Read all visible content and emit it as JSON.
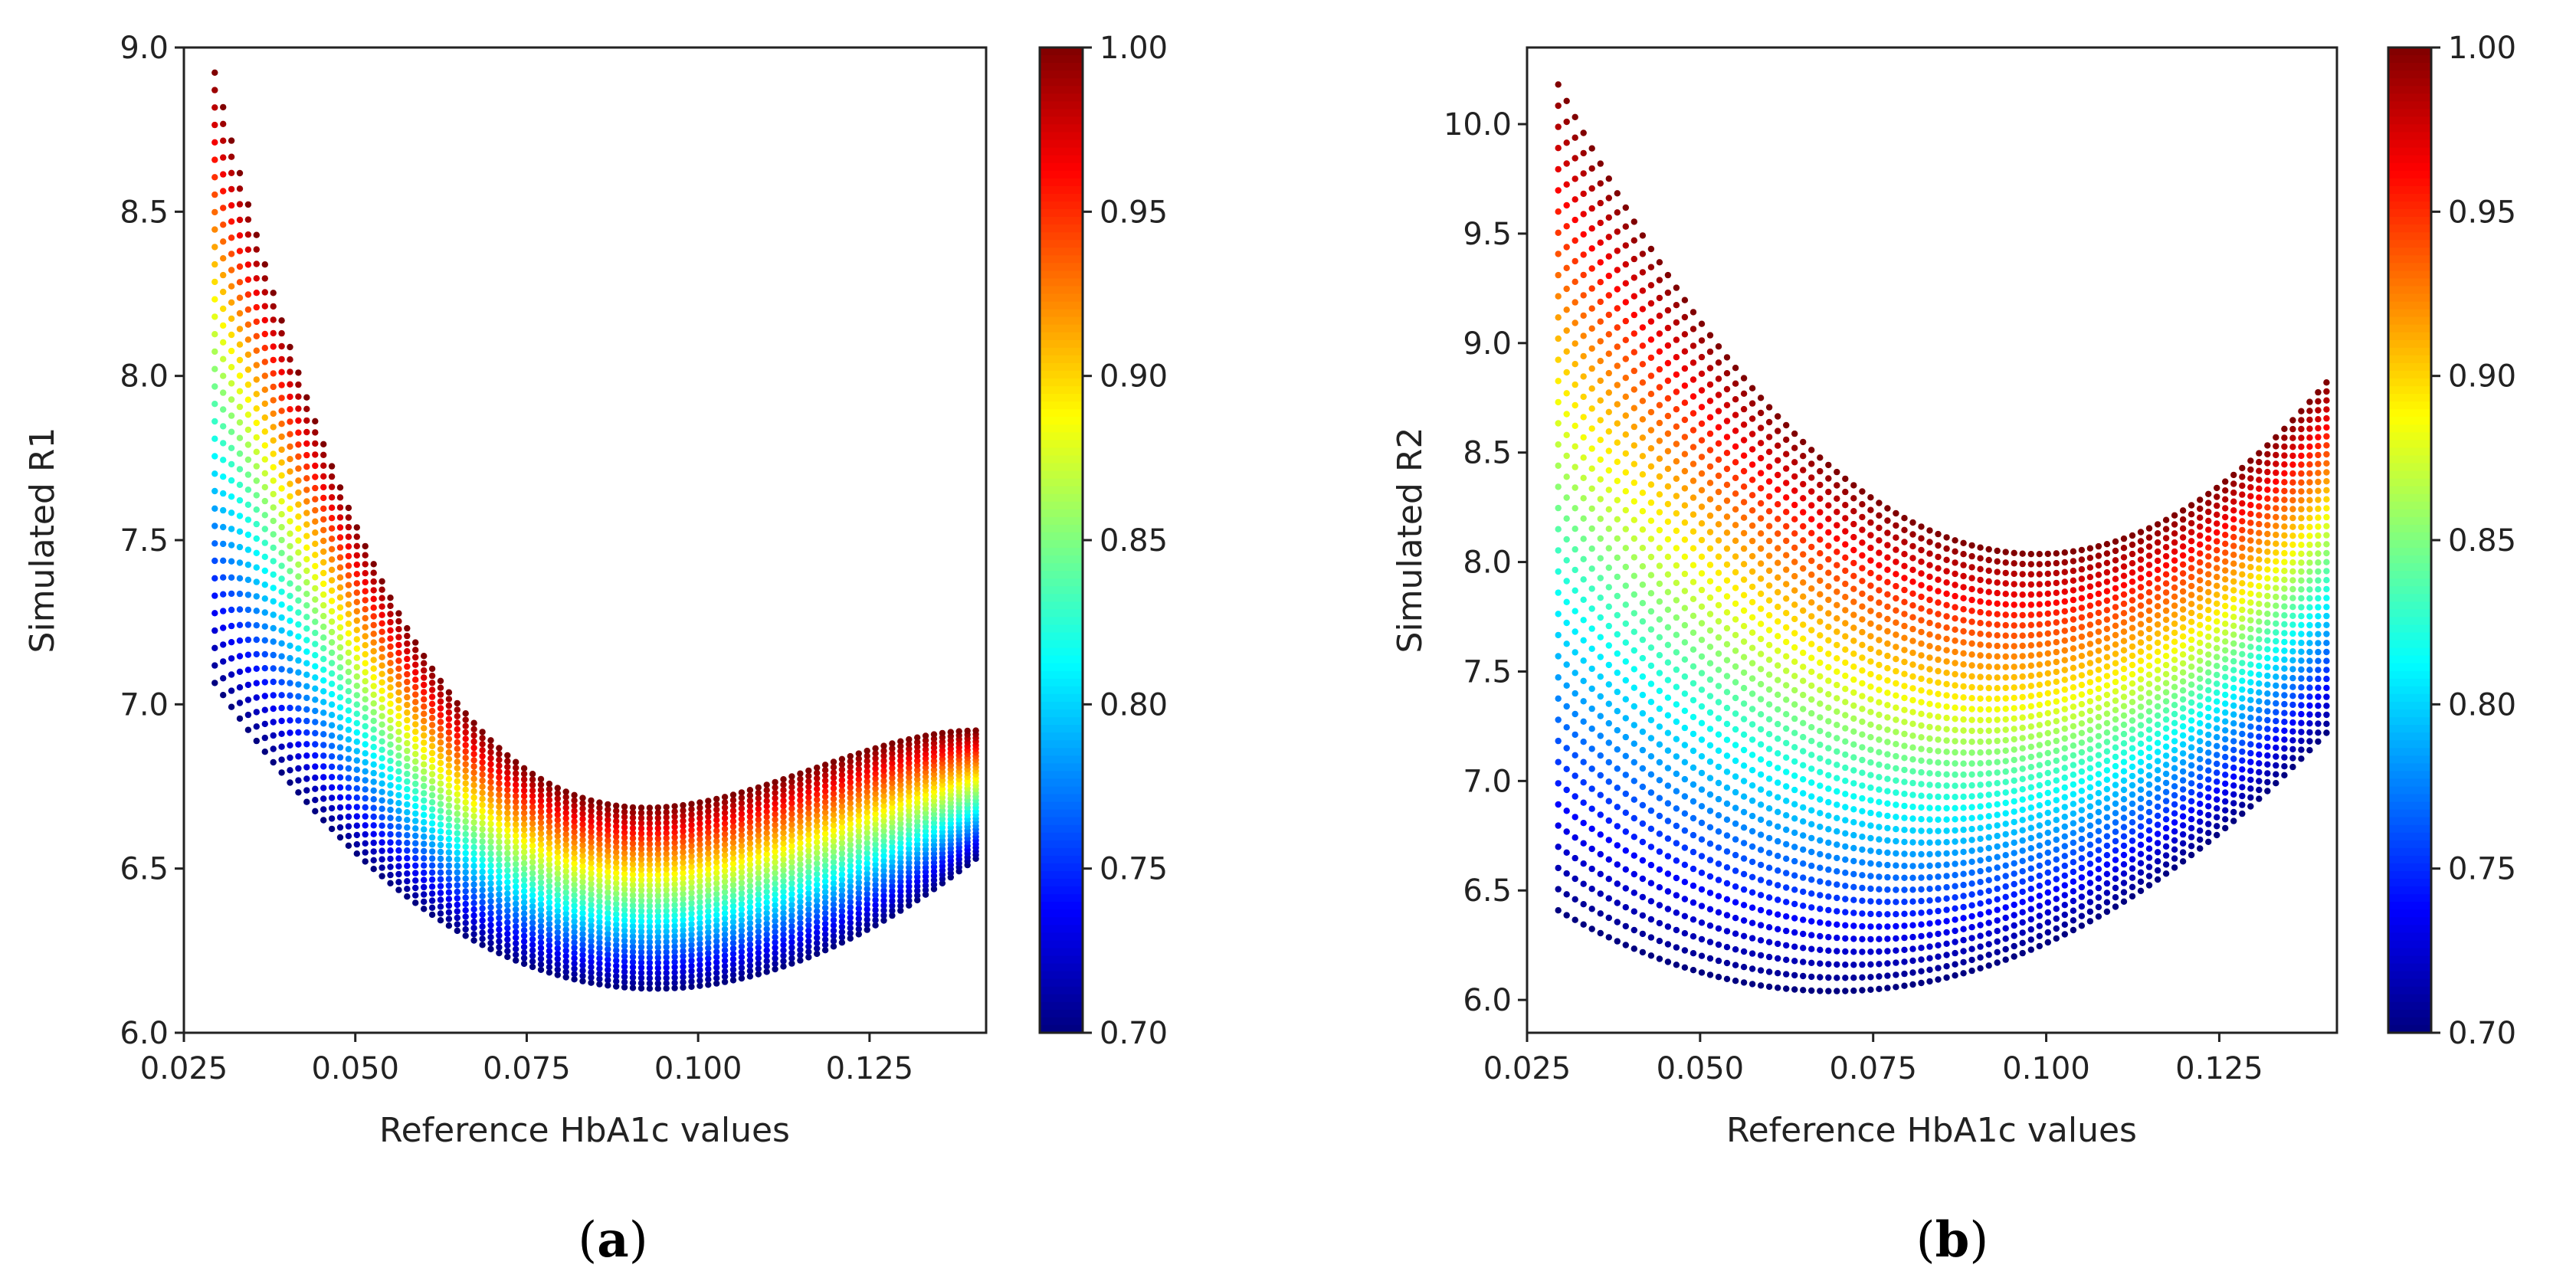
{
  "chart_data": [
    {
      "type": "scatter",
      "panel_label": "a",
      "xlabel": "Reference HbA1c values",
      "ylabel": "Simulated R1",
      "xlim": [
        0.025,
        0.142
      ],
      "ylim": [
        6.0,
        9.0
      ],
      "x_ticks": [
        "0.025",
        "0.050",
        "0.075",
        "0.100",
        "0.125"
      ],
      "y_ticks": [
        "6.0",
        "6.5",
        "7.0",
        "7.5",
        "8.0",
        "8.5",
        "9.0"
      ],
      "x_range": [
        0.0295,
        0.1405
      ],
      "colorbar": {
        "range": [
          0.7,
          1.0
        ],
        "ticks": [
          "0.70",
          "0.75",
          "0.80",
          "0.85",
          "0.90",
          "0.95",
          "1.00"
        ],
        "colormap": "jet"
      },
      "series": [
        {
          "color_value": 0.7,
          "anchors": [
            [
              0.03,
              7.05
            ],
            [
              0.05,
              6.55
            ],
            [
              0.085,
              6.15
            ],
            [
              0.1405,
              6.53
            ]
          ]
        },
        {
          "color_value": 1.0,
          "anchors": [
            [
              0.03,
              8.88
            ],
            [
              0.05,
              7.55
            ],
            [
              0.1,
              6.7
            ],
            [
              0.1405,
              6.92
            ]
          ]
        }
      ],
      "n_series": 36
    },
    {
      "type": "scatter",
      "panel_label": "b",
      "xlabel": "Reference HbA1c values",
      "ylabel": "Simulated R2",
      "xlim": [
        0.025,
        0.142
      ],
      "ylim": [
        5.85,
        10.35
      ],
      "x_ticks": [
        "0.025",
        "0.050",
        "0.075",
        "0.100",
        "0.125"
      ],
      "y_ticks": [
        "6.0",
        "6.5",
        "7.0",
        "7.5",
        "8.0",
        "8.5",
        "9.0",
        "9.5",
        "10.0"
      ],
      "x_range": [
        0.0295,
        0.1405
      ],
      "colorbar": {
        "range": [
          0.7,
          1.0
        ],
        "ticks": [
          "0.70",
          "0.75",
          "0.80",
          "0.85",
          "0.90",
          "0.95",
          "1.00"
        ],
        "colormap": "jet"
      },
      "series": [
        {
          "color_value": 0.7,
          "anchors": [
            [
              0.03,
              6.4
            ],
            [
              0.058,
              6.07
            ],
            [
              0.1405,
              7.22
            ]
          ]
        },
        {
          "color_value": 1.0,
          "anchors": [
            [
              0.03,
              10.15
            ],
            [
              0.085,
              8.12
            ],
            [
              0.1405,
              8.82
            ]
          ]
        }
      ],
      "n_series": 40
    }
  ]
}
